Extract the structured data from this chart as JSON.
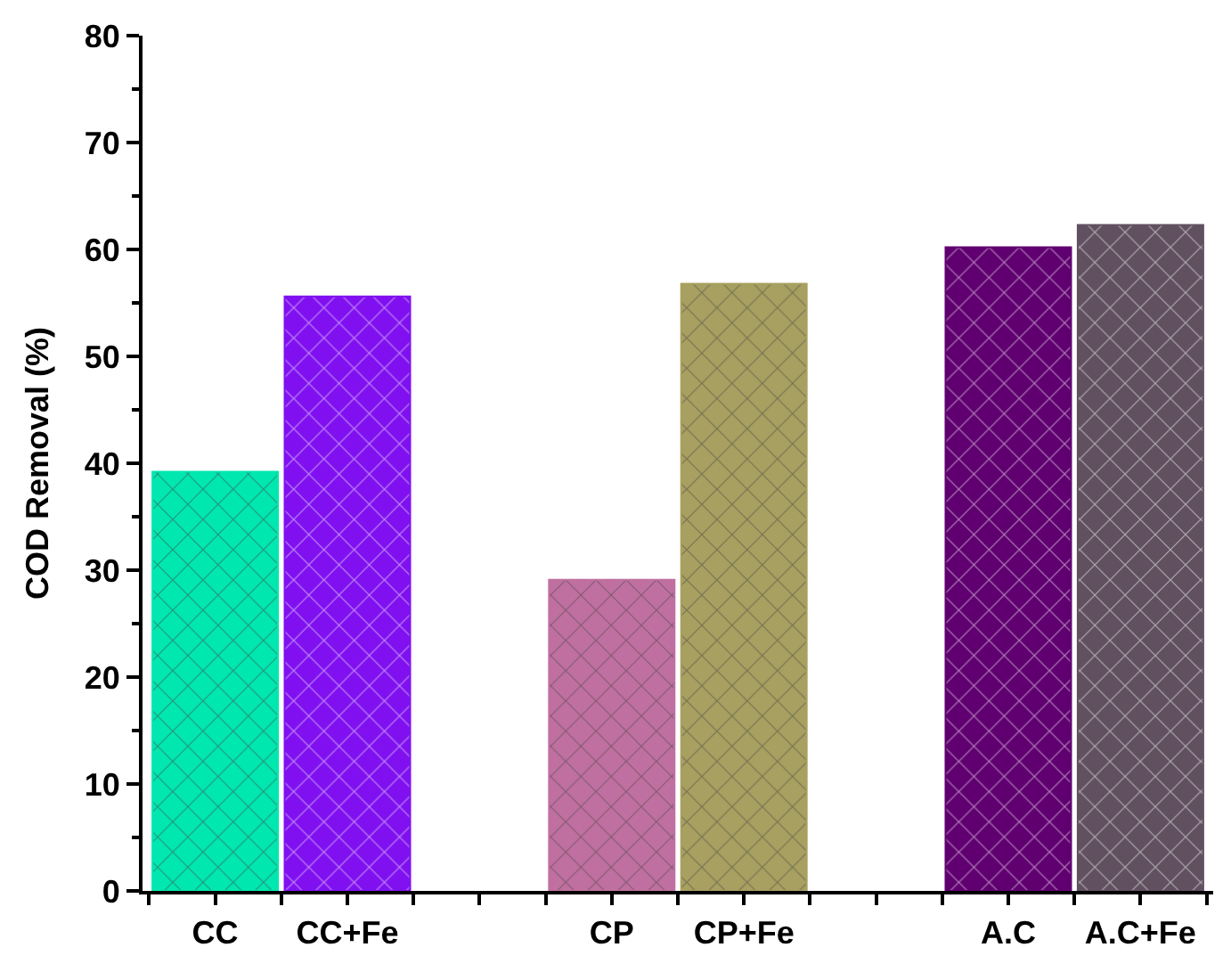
{
  "chart_data": {
    "type": "bar",
    "ylabel": "COD Removal (%)",
    "categories": [
      "CC",
      "CC+Fe",
      null,
      "CP",
      "CP+Fe",
      null,
      "A.C",
      "A.C+Fe"
    ],
    "values": [
      39.2,
      55.6,
      null,
      29.1,
      56.8,
      null,
      60.2,
      62.3
    ],
    "colors": [
      "#00e8b0",
      "#8010f0",
      null,
      "#c070a0",
      "#a8a060",
      null,
      "#600070",
      "#605060"
    ],
    "ylim": [
      0,
      80
    ],
    "yticks": [
      0,
      10,
      20,
      30,
      40,
      50,
      60,
      70,
      80
    ]
  }
}
